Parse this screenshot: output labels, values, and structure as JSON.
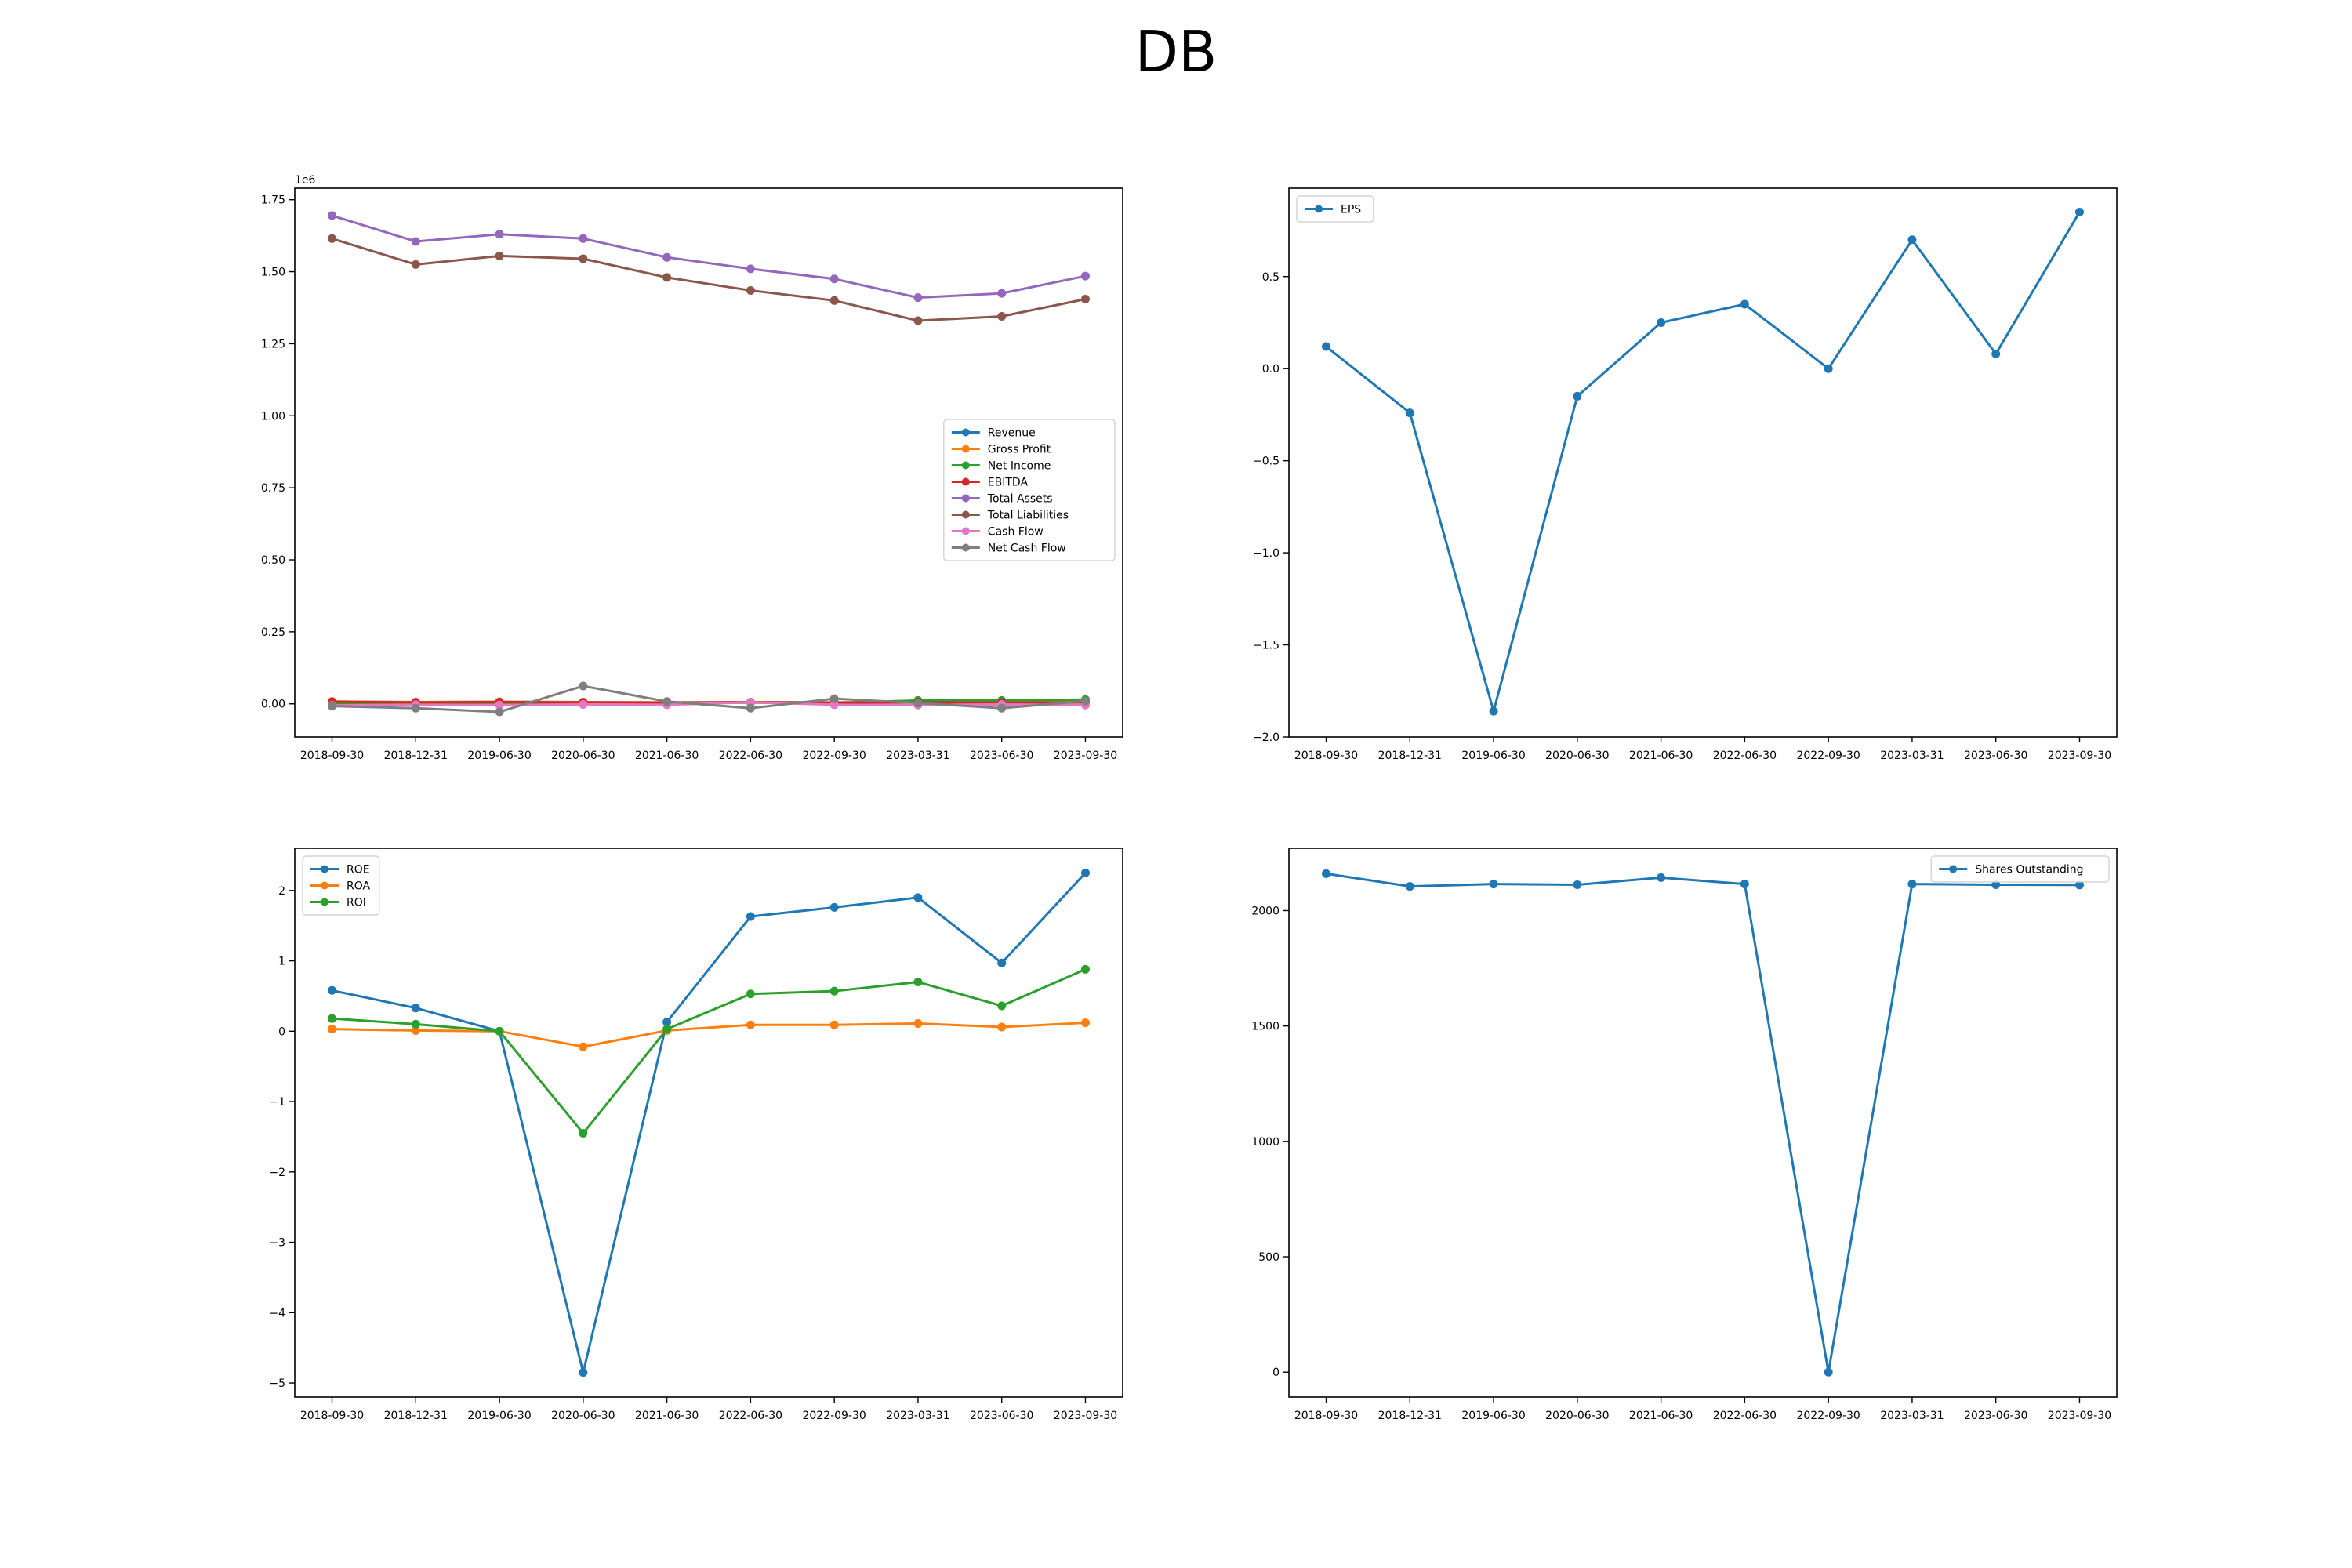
{
  "title": "DB",
  "colors": {
    "c0": "#1f77b4",
    "c1": "#ff7f0e",
    "c2": "#2ca02c",
    "c3": "#d62728",
    "c4": "#9467bd",
    "c5": "#8c564b",
    "c6": "#e377c2",
    "c7": "#7f7f7f"
  },
  "chart_data": [
    {
      "type": "line",
      "categories": [
        "2018-09-30",
        "2018-12-31",
        "2019-06-30",
        "2020-06-30",
        "2021-06-30",
        "2022-06-30",
        "2022-09-30",
        "2023-03-31",
        "2023-06-30",
        "2023-09-30"
      ],
      "ylim": [
        -115000,
        1790000
      ],
      "yticks": [
        0,
        250000,
        500000,
        750000,
        1000000,
        1250000,
        1500000,
        1750000
      ],
      "ytick_labels": [
        "0.00",
        "0.25",
        "0.50",
        "0.75",
        "1.00",
        "1.25",
        "1.50",
        "1.75"
      ],
      "offset_label": "1e6",
      "legend": "center-right",
      "grid": false,
      "series": [
        {
          "name": "Revenue",
          "color": "#1f77b4",
          "values": [
            8000,
            6000,
            7000,
            6000,
            5000,
            6000,
            5000,
            6000,
            6000,
            7000
          ]
        },
        {
          "name": "Gross Profit",
          "color": "#ff7f0e",
          "values": [
            8000,
            6000,
            7000,
            6000,
            5000,
            6000,
            5000,
            6000,
            6000,
            7000
          ]
        },
        {
          "name": "Net Income",
          "color": "#2ca02c",
          "values": [
            2000,
            1000,
            1000,
            0,
            2000,
            4000,
            3000,
            12000,
            12000,
            15000
          ]
        },
        {
          "name": "EBITDA",
          "color": "#d62728",
          "values": [
            7000,
            5000,
            6000,
            5000,
            4000,
            5000,
            4000,
            5000,
            4000,
            5000
          ]
        },
        {
          "name": "Total Assets",
          "color": "#9467bd",
          "values": [
            1695000,
            1605000,
            1630000,
            1615000,
            1550000,
            1510000,
            1475000,
            1410000,
            1425000,
            1485000
          ]
        },
        {
          "name": "Total Liabilities",
          "color": "#8c564b",
          "values": [
            1615000,
            1525000,
            1555000,
            1545000,
            1480000,
            1435000,
            1400000,
            1330000,
            1345000,
            1405000
          ]
        },
        {
          "name": "Cash Flow",
          "color": "#e377c2",
          "values": [
            -5000,
            -3000,
            -4000,
            -2000,
            -3000,
            5000,
            -3000,
            -4000,
            -2000,
            -4000
          ]
        },
        {
          "name": "Net Cash Flow",
          "color": "#7f7f7f",
          "values": [
            -8000,
            -15000,
            -28000,
            62000,
            8000,
            -15000,
            18000,
            3000,
            -15000,
            10000
          ]
        }
      ]
    },
    {
      "type": "line",
      "categories": [
        "2018-09-30",
        "2018-12-31",
        "2019-06-30",
        "2020-06-30",
        "2021-06-30",
        "2022-06-30",
        "2022-09-30",
        "2023-03-31",
        "2023-06-30",
        "2023-09-30"
      ],
      "ylim": [
        -2.0,
        0.98
      ],
      "yticks": [
        -2.0,
        -1.5,
        -1.0,
        -0.5,
        0.0,
        0.5
      ],
      "ytick_labels": [
        "−2.0",
        "−1.5",
        "−1.0",
        "−0.5",
        "0.0",
        "0.5"
      ],
      "legend": "top-left",
      "grid": false,
      "series": [
        {
          "name": "EPS",
          "color": "#1f77b4",
          "values": [
            0.12,
            -0.24,
            -1.86,
            -0.15,
            0.25,
            0.35,
            0.0,
            0.7,
            0.08,
            0.85
          ]
        }
      ]
    },
    {
      "type": "line",
      "categories": [
        "2018-09-30",
        "2018-12-31",
        "2019-06-30",
        "2020-06-30",
        "2021-06-30",
        "2022-06-30",
        "2022-09-30",
        "2023-03-31",
        "2023-06-30",
        "2023-09-30"
      ],
      "ylim": [
        -5.2,
        2.6
      ],
      "yticks": [
        -5,
        -4,
        -3,
        -2,
        -1,
        0,
        1,
        2
      ],
      "ytick_labels": [
        "−5",
        "−4",
        "−3",
        "−2",
        "−1",
        "0",
        "1",
        "2"
      ],
      "legend": "top-left",
      "grid": false,
      "series": [
        {
          "name": "ROE",
          "color": "#1f77b4",
          "values": [
            0.58,
            0.33,
            0.0,
            -4.85,
            0.13,
            1.63,
            1.76,
            1.9,
            0.97,
            2.25
          ]
        },
        {
          "name": "ROA",
          "color": "#ff7f0e",
          "values": [
            0.03,
            0.01,
            0.0,
            -0.22,
            0.01,
            0.09,
            0.09,
            0.11,
            0.06,
            0.12
          ]
        },
        {
          "name": "ROI",
          "color": "#2ca02c",
          "values": [
            0.18,
            0.1,
            0.0,
            -1.45,
            0.03,
            0.53,
            0.57,
            0.7,
            0.36,
            0.88
          ]
        }
      ]
    },
    {
      "type": "line",
      "categories": [
        "2018-09-30",
        "2018-12-31",
        "2019-06-30",
        "2020-06-30",
        "2021-06-30",
        "2022-06-30",
        "2022-09-30",
        "2023-03-31",
        "2023-06-30",
        "2023-09-30"
      ],
      "ylim": [
        -108,
        2270
      ],
      "yticks": [
        0,
        500,
        1000,
        1500,
        2000
      ],
      "ytick_labels": [
        "0",
        "500",
        "1000",
        "1500",
        "2000"
      ],
      "legend": "top-right",
      "grid": false,
      "series": [
        {
          "name": "Shares Outstanding",
          "color": "#1f77b4",
          "values": [
            2160,
            2105,
            2115,
            2112,
            2143,
            2115,
            0,
            2115,
            2112,
            2111
          ]
        }
      ]
    }
  ]
}
